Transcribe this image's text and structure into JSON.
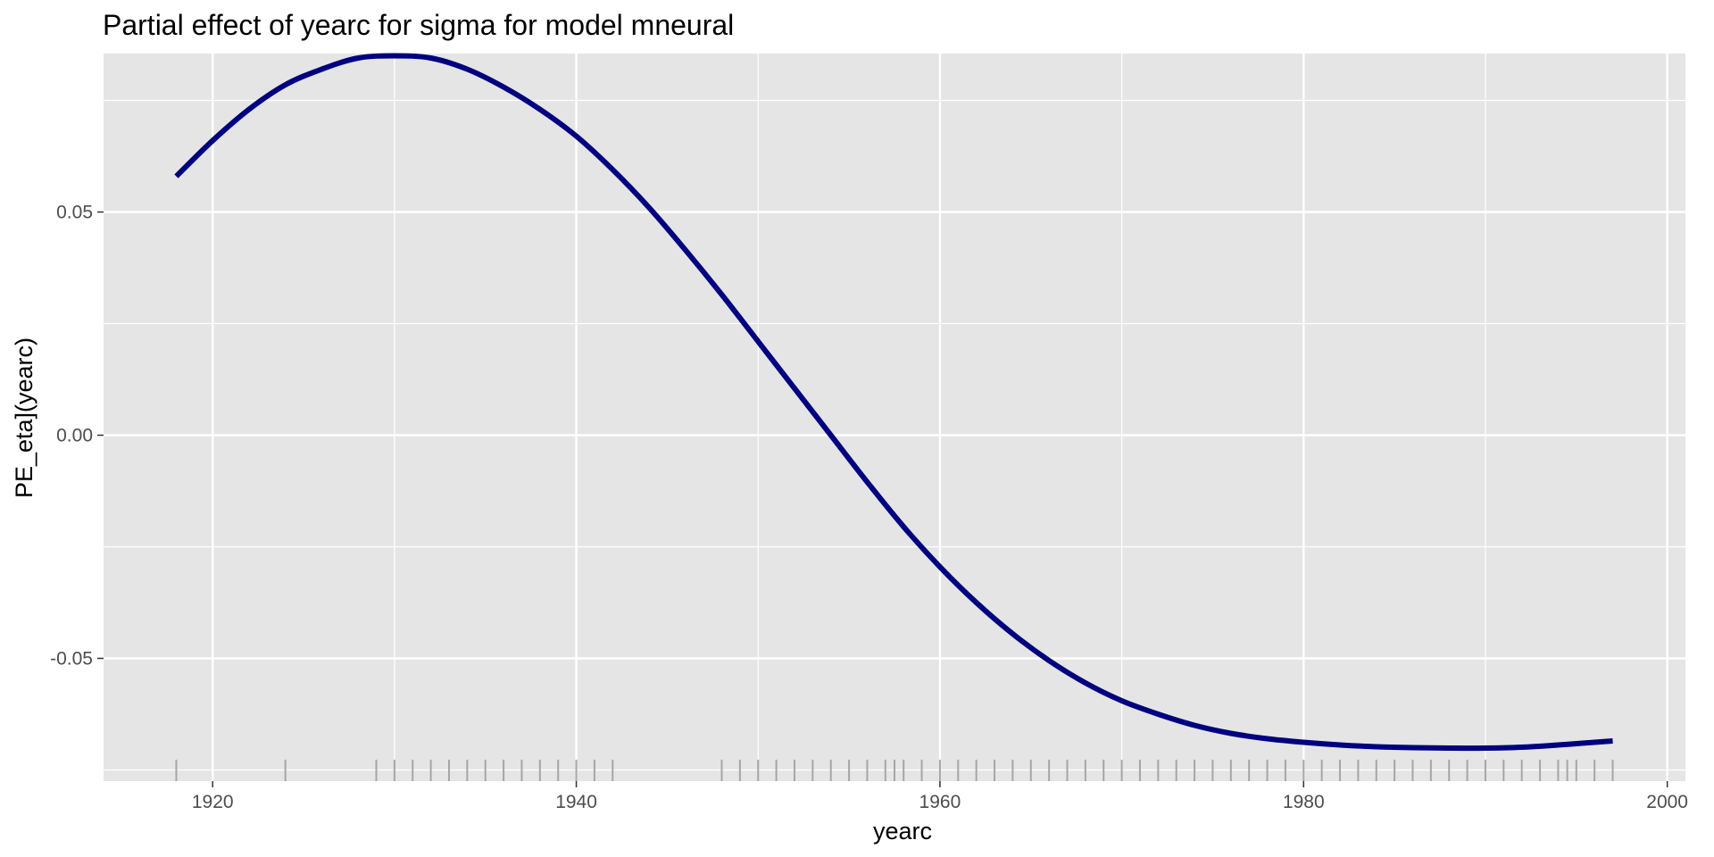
{
  "chart_data": {
    "type": "line",
    "title": "Partial effect of yearc for sigma for model mneural",
    "xlabel": "yearc",
    "ylabel": "PE_eta](yearc)",
    "xlim": [
      1914,
      2001
    ],
    "ylim": [
      -0.0775,
      0.0855
    ],
    "x_ticks": [
      1920,
      1940,
      1960,
      1980,
      2000
    ],
    "x_tick_labels": [
      "1920",
      "1940",
      "1960",
      "1980",
      "2000"
    ],
    "y_ticks": [
      -0.05,
      0.0,
      0.05
    ],
    "y_tick_labels": [
      "-0.05",
      "0.00",
      "0.05"
    ],
    "grid": true,
    "series": [
      {
        "color": "#000080",
        "x": [
          1918,
          1920,
          1922,
          1924,
          1926,
          1928,
          1930,
          1932,
          1934,
          1936,
          1938,
          1940,
          1942,
          1944,
          1946,
          1948,
          1950,
          1952,
          1954,
          1956,
          1958,
          1960,
          1962,
          1964,
          1966,
          1968,
          1970,
          1972,
          1974,
          1976,
          1978,
          1980,
          1982,
          1984,
          1986,
          1988,
          1990,
          1992,
          1994,
          1996,
          1997
        ],
        "y": [
          0.058,
          0.066,
          0.073,
          0.0785,
          0.082,
          0.0845,
          0.085,
          0.0845,
          0.082,
          0.078,
          0.073,
          0.067,
          0.0595,
          0.051,
          0.0415,
          0.0315,
          0.021,
          0.0105,
          0.0,
          -0.0105,
          -0.0205,
          -0.0295,
          -0.0375,
          -0.0445,
          -0.0505,
          -0.0555,
          -0.0595,
          -0.0625,
          -0.065,
          -0.0668,
          -0.068,
          -0.0688,
          -0.0694,
          -0.0698,
          -0.07,
          -0.0701,
          -0.0701,
          -0.0699,
          -0.0694,
          -0.0688,
          -0.0685
        ]
      }
    ],
    "rug_x": [
      1918,
      1924,
      1929,
      1930,
      1931,
      1932,
      1933,
      1934,
      1935,
      1936,
      1937,
      1938,
      1939,
      1940,
      1941,
      1942,
      1948,
      1949,
      1950,
      1951,
      1952,
      1953,
      1954,
      1955,
      1956,
      1957,
      1957.5,
      1958,
      1959,
      1960,
      1961,
      1962,
      1963,
      1964,
      1965,
      1966,
      1967,
      1968,
      1969,
      1970,
      1971,
      1972,
      1973,
      1974,
      1975,
      1976,
      1977,
      1978,
      1979,
      1980,
      1981,
      1982,
      1983,
      1984,
      1985,
      1986,
      1987,
      1988,
      1989,
      1990,
      1991,
      1992,
      1993,
      1994,
      1994.5,
      1995,
      1996,
      1997
    ],
    "rug_color": "#a6a6a6",
    "panel_background": "#e5e5e5",
    "grid_color": "#ffffff"
  }
}
